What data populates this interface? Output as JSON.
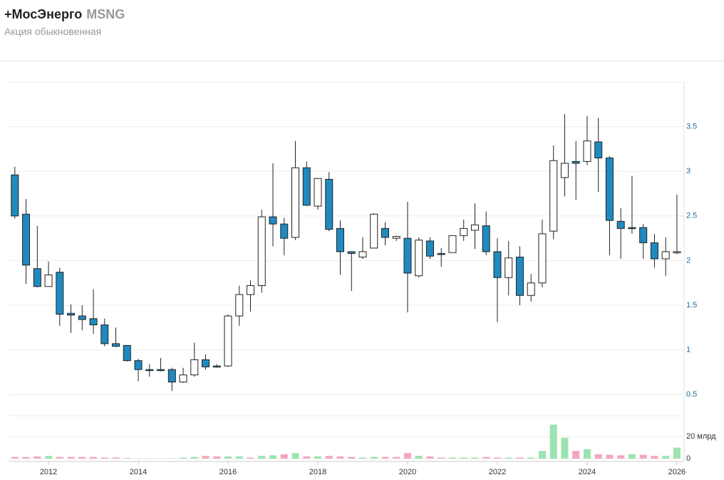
{
  "header": {
    "add": "+",
    "title": "МосЭнерго",
    "ticker": "MSNG",
    "subtitle": "Акция обыкновенная"
  },
  "chart_data": {
    "type": "candlestick",
    "up_color": "#ffffff",
    "down_color": "#1f8ac0",
    "x": [
      2011.25,
      2011.5,
      2011.75,
      2012,
      2012.25,
      2012.5,
      2012.75,
      2013,
      2013.25,
      2013.5,
      2013.75,
      2014,
      2014.25,
      2014.5,
      2014.75,
      2015,
      2015.25,
      2015.5,
      2015.75,
      2016,
      2016.25,
      2016.5,
      2016.75,
      2017,
      2017.25,
      2017.5,
      2017.75,
      2018,
      2018.25,
      2018.5,
      2018.75,
      2019,
      2019.25,
      2019.5,
      2019.75,
      2020,
      2020.25,
      2020.5,
      2020.75,
      2021,
      2021.25,
      2021.5,
      2021.75,
      2022,
      2022.25,
      2022.5,
      2022.75,
      2023,
      2023.25,
      2023.5,
      2023.75,
      2024,
      2024.25,
      2024.5,
      2024.75,
      2025,
      2025.25,
      2025.5,
      2025.75,
      2026
    ],
    "open": [
      2.96,
      2.52,
      1.91,
      1.71,
      1.87,
      1.41,
      1.38,
      1.35,
      1.28,
      1.07,
      1.05,
      0.88,
      0.78,
      0.78,
      0.78,
      0.64,
      0.72,
      0.89,
      0.82,
      0.82,
      1.38,
      1.62,
      1.72,
      2.49,
      2.41,
      2.26,
      3.04,
      2.61,
      2.91,
      2.36,
      2.1,
      2.04,
      2.14,
      2.36,
      2.25,
      2.25,
      1.83,
      2.22,
      2.08,
      2.09,
      2.28,
      2.34,
      2.39,
      2.1,
      1.81,
      2.04,
      1.61,
      1.75,
      2.33,
      2.93,
      3.11,
      3.11,
      3.33,
      3.15,
      2.44,
      2.37,
      2.37,
      2.2,
      2.02,
      2.09
    ],
    "high": [
      3.05,
      2.69,
      2.39,
      1.99,
      1.92,
      1.51,
      1.5,
      1.68,
      1.35,
      1.25,
      1.05,
      0.9,
      0.84,
      0.91,
      0.8,
      0.8,
      1.08,
      0.95,
      0.84,
      1.4,
      1.72,
      1.78,
      2.57,
      3.09,
      2.48,
      3.34,
      3.11,
      2.92,
      2.99,
      2.45,
      2.1,
      2.26,
      2.53,
      2.43,
      2.28,
      2.66,
      2.26,
      2.26,
      2.14,
      2.28,
      2.46,
      2.64,
      2.55,
      2.25,
      2.22,
      2.16,
      1.85,
      2.46,
      3.29,
      3.64,
      3.34,
      3.62,
      3.6,
      3.17,
      2.59,
      2.95,
      2.41,
      2.3,
      2.26,
      2.74
    ],
    "low": [
      2.47,
      1.74,
      1.7,
      1.71,
      1.27,
      1.19,
      1.22,
      1.18,
      1.04,
      1.03,
      0.87,
      0.65,
      0.7,
      0.76,
      0.54,
      0.63,
      0.7,
      0.78,
      0.8,
      0.81,
      1.27,
      1.43,
      1.64,
      2.16,
      2.06,
      2.23,
      2.61,
      2.57,
      2.33,
      1.84,
      1.66,
      2.02,
      2.14,
      2.17,
      2.22,
      1.42,
      1.81,
      2.02,
      1.93,
      2.09,
      2.22,
      2.13,
      2.06,
      1.31,
      1.61,
      1.5,
      1.54,
      1.7,
      2.24,
      2.72,
      2.68,
      3.07,
      2.77,
      2.06,
      2.02,
      2.3,
      2.02,
      1.92,
      1.83,
      2.07
    ],
    "close": [
      2.5,
      1.95,
      1.71,
      1.84,
      1.4,
      1.39,
      1.34,
      1.28,
      1.07,
      1.04,
      0.88,
      0.78,
      0.77,
      0.77,
      0.64,
      0.72,
      0.89,
      0.81,
      0.81,
      1.38,
      1.62,
      1.72,
      2.49,
      2.41,
      2.25,
      3.04,
      2.62,
      2.92,
      2.35,
      2.1,
      2.08,
      2.1,
      2.52,
      2.26,
      2.27,
      1.86,
      2.23,
      2.05,
      2.07,
      2.28,
      2.36,
      2.4,
      2.1,
      1.81,
      2.03,
      1.61,
      1.75,
      2.3,
      3.12,
      3.09,
      3.09,
      3.34,
      3.15,
      2.45,
      2.36,
      2.36,
      2.2,
      2.02,
      2.1,
      2.1
    ],
    "xlim": [
      2011.11,
      2026.16
    ],
    "xticks": [
      2012,
      2014,
      2016,
      2018,
      2020,
      2022,
      2024,
      2026
    ],
    "ylim": [
      0.35,
      4.0
    ],
    "yticks": [
      0.5,
      1,
      1.5,
      2,
      2.5,
      3,
      3.5
    ],
    "grid": true,
    "volume": {
      "values": [
        1.5,
        1.5,
        2,
        2.5,
        1.5,
        1.5,
        1.5,
        1.5,
        1,
        1,
        0.5,
        0.3,
        0.2,
        0.2,
        0.3,
        1,
        1.5,
        2.5,
        2,
        2,
        2,
        1,
        2.5,
        3,
        4,
        5,
        2,
        2,
        2.5,
        2,
        1.5,
        1,
        1.5,
        1.5,
        1.5,
        5,
        2.5,
        2,
        1,
        1,
        1,
        1,
        1.5,
        1,
        1,
        1,
        1,
        7,
        31,
        19,
        7,
        8.5,
        4,
        3.5,
        3,
        4,
        3.5,
        2.5,
        2.5,
        10
      ],
      "colors": [
        "#f4a6be",
        "#f4a6be",
        "#f4a6be",
        "#9be3b0",
        "#f4a6be",
        "#f4a6be",
        "#f4a6be",
        "#f4a6be",
        "#f4a6be",
        "#f4a6be",
        "#f4a6be",
        "#f4a6be",
        "#f4a6be",
        "#f4a6be",
        "#f4a6be",
        "#9be3b0",
        "#9be3b0",
        "#f4a6be",
        "#f4a6be",
        "#9be3b0",
        "#9be3b0",
        "#f4a6be",
        "#9be3b0",
        "#9be3b0",
        "#f4a6be",
        "#9be3b0",
        "#f4a6be",
        "#9be3b0",
        "#f4a6be",
        "#f4a6be",
        "#f4a6be",
        "#9be3b0",
        "#9be3b0",
        "#f4a6be",
        "#f4a6be",
        "#f4a6be",
        "#9be3b0",
        "#f4a6be",
        "#f4a6be",
        "#9be3b0",
        "#9be3b0",
        "#9be3b0",
        "#f4a6be",
        "#f4a6be",
        "#9be3b0",
        "#f4a6be",
        "#9be3b0",
        "#9be3b0",
        "#9be3b0",
        "#9be3b0",
        "#f4a6be",
        "#9be3b0",
        "#f4a6be",
        "#f4a6be",
        "#f4a6be",
        "#9be3b0",
        "#f4a6be",
        "#f4a6be",
        "#9be3b0",
        "#9be3b0"
      ],
      "ylim": [
        0,
        39
      ],
      "yticks": [
        0,
        {
          "value": 20,
          "label": "20 млрд"
        }
      ]
    }
  }
}
